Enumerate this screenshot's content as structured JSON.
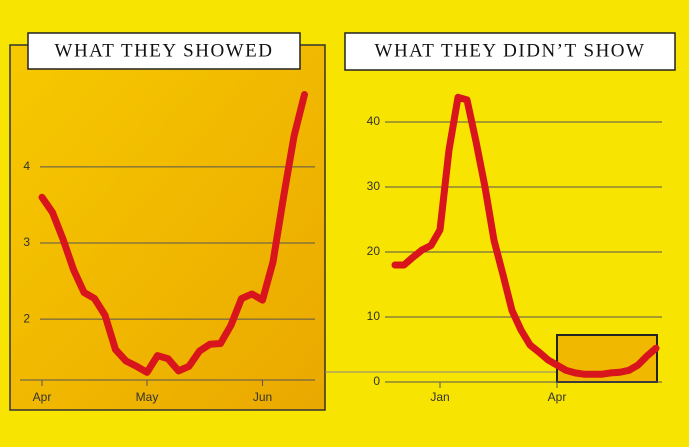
{
  "chart_data": [
    {
      "type": "line",
      "title": "WHAT THEY SHOWED",
      "categories": [
        "Apr",
        null,
        null,
        null,
        null,
        null,
        null,
        null,
        null,
        null,
        "May",
        null,
        null,
        null,
        null,
        null,
        null,
        null,
        null,
        null,
        null,
        "Jun",
        null,
        null,
        null,
        null
      ],
      "values": [
        3.6,
        3.4,
        3.05,
        2.65,
        2.35,
        2.27,
        2.05,
        1.6,
        1.45,
        1.38,
        1.3,
        1.52,
        1.48,
        1.32,
        1.38,
        1.58,
        1.67,
        1.68,
        1.92,
        2.27,
        2.33,
        2.25,
        2.75,
        3.6,
        4.4,
        4.95
      ],
      "color": "#d8141c",
      "ylim": [
        1.2,
        5.6
      ],
      "yticks": [
        2,
        3,
        4
      ],
      "grid": true
    },
    {
      "type": "line",
      "title": "WHAT THEY DIDN’T SHOW",
      "categories": [
        null,
        null,
        null,
        null,
        null,
        "Jan",
        null,
        null,
        null,
        null,
        null,
        null,
        null,
        null,
        null,
        null,
        null,
        null,
        "Apr",
        null,
        null,
        null,
        null,
        null,
        null,
        null,
        null,
        null,
        null,
        null
      ],
      "values": [
        18,
        18,
        19.2,
        20.3,
        21,
        23.4,
        35.7,
        43.8,
        43.4,
        37,
        30,
        21.8,
        16.5,
        11,
        8,
        5.7,
        4.6,
        3.4,
        2.6,
        1.8,
        1.4,
        1.2,
        1.2,
        1.2,
        1.4,
        1.5,
        1.8,
        2.6,
        4,
        5.2
      ],
      "color": "#d8141c",
      "ylim": [
        0,
        46
      ],
      "yticks": [
        0,
        10,
        20,
        30,
        40
      ],
      "grid": true
    }
  ]
}
